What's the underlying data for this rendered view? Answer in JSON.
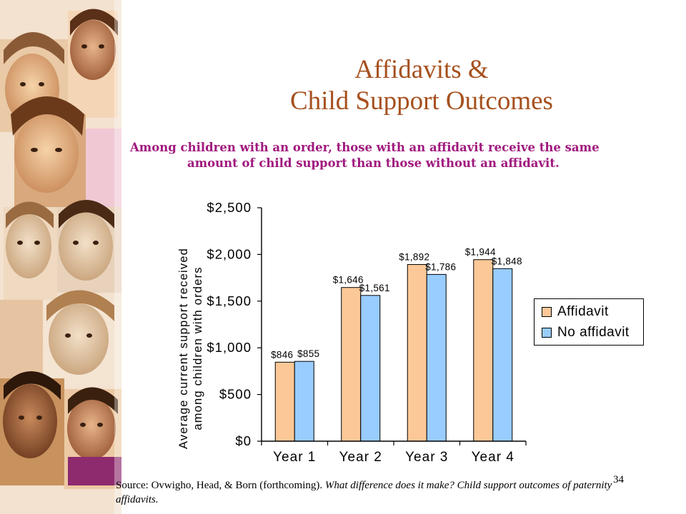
{
  "slide": {
    "title_line1": "Affidavits &",
    "title_line2": "Child Support Outcomes",
    "subtitle_line1": "Among children with an order, those with an affidavit receive the same",
    "subtitle_line2": "amount of child support than those without an affidavit.",
    "source_prefix": "Source: Ovwigho, Head, & Born (forthcoming).  ",
    "source_title": "What difference does it make?  Child support outcomes of paternity affidavits.",
    "slide_number": "34"
  },
  "colors": {
    "title": "#a6501e",
    "subtitle": "#a0187e",
    "affidavit": "#fcc898",
    "no_affidavit": "#99ccff"
  },
  "chart_data": {
    "type": "bar",
    "categories": [
      "Year 1",
      "Year 2",
      "Year 3",
      "Year 4"
    ],
    "series": [
      {
        "name": "Affidavit",
        "values": [
          846,
          1646,
          1892,
          1944
        ],
        "labels": [
          "$846",
          "$1,646",
          "$1,892",
          "$1,944"
        ]
      },
      {
        "name": "No affidavit",
        "values": [
          855,
          1561,
          1786,
          1848
        ],
        "labels": [
          "$855",
          "$1,561",
          "$1,786",
          "$1,848"
        ]
      }
    ],
    "ylabel_line1": "Average current support received",
    "ylabel_line2": "among children with orders",
    "xlabel": "",
    "ylim": [
      0,
      2500
    ],
    "yticks": [
      0,
      500,
      1000,
      1500,
      2000,
      2500
    ],
    "ytick_labels": [
      "$0",
      "$500",
      "$1,000",
      "$1,500",
      "$2,000",
      "$2,500"
    ],
    "grid": false,
    "legend_position": "right"
  }
}
